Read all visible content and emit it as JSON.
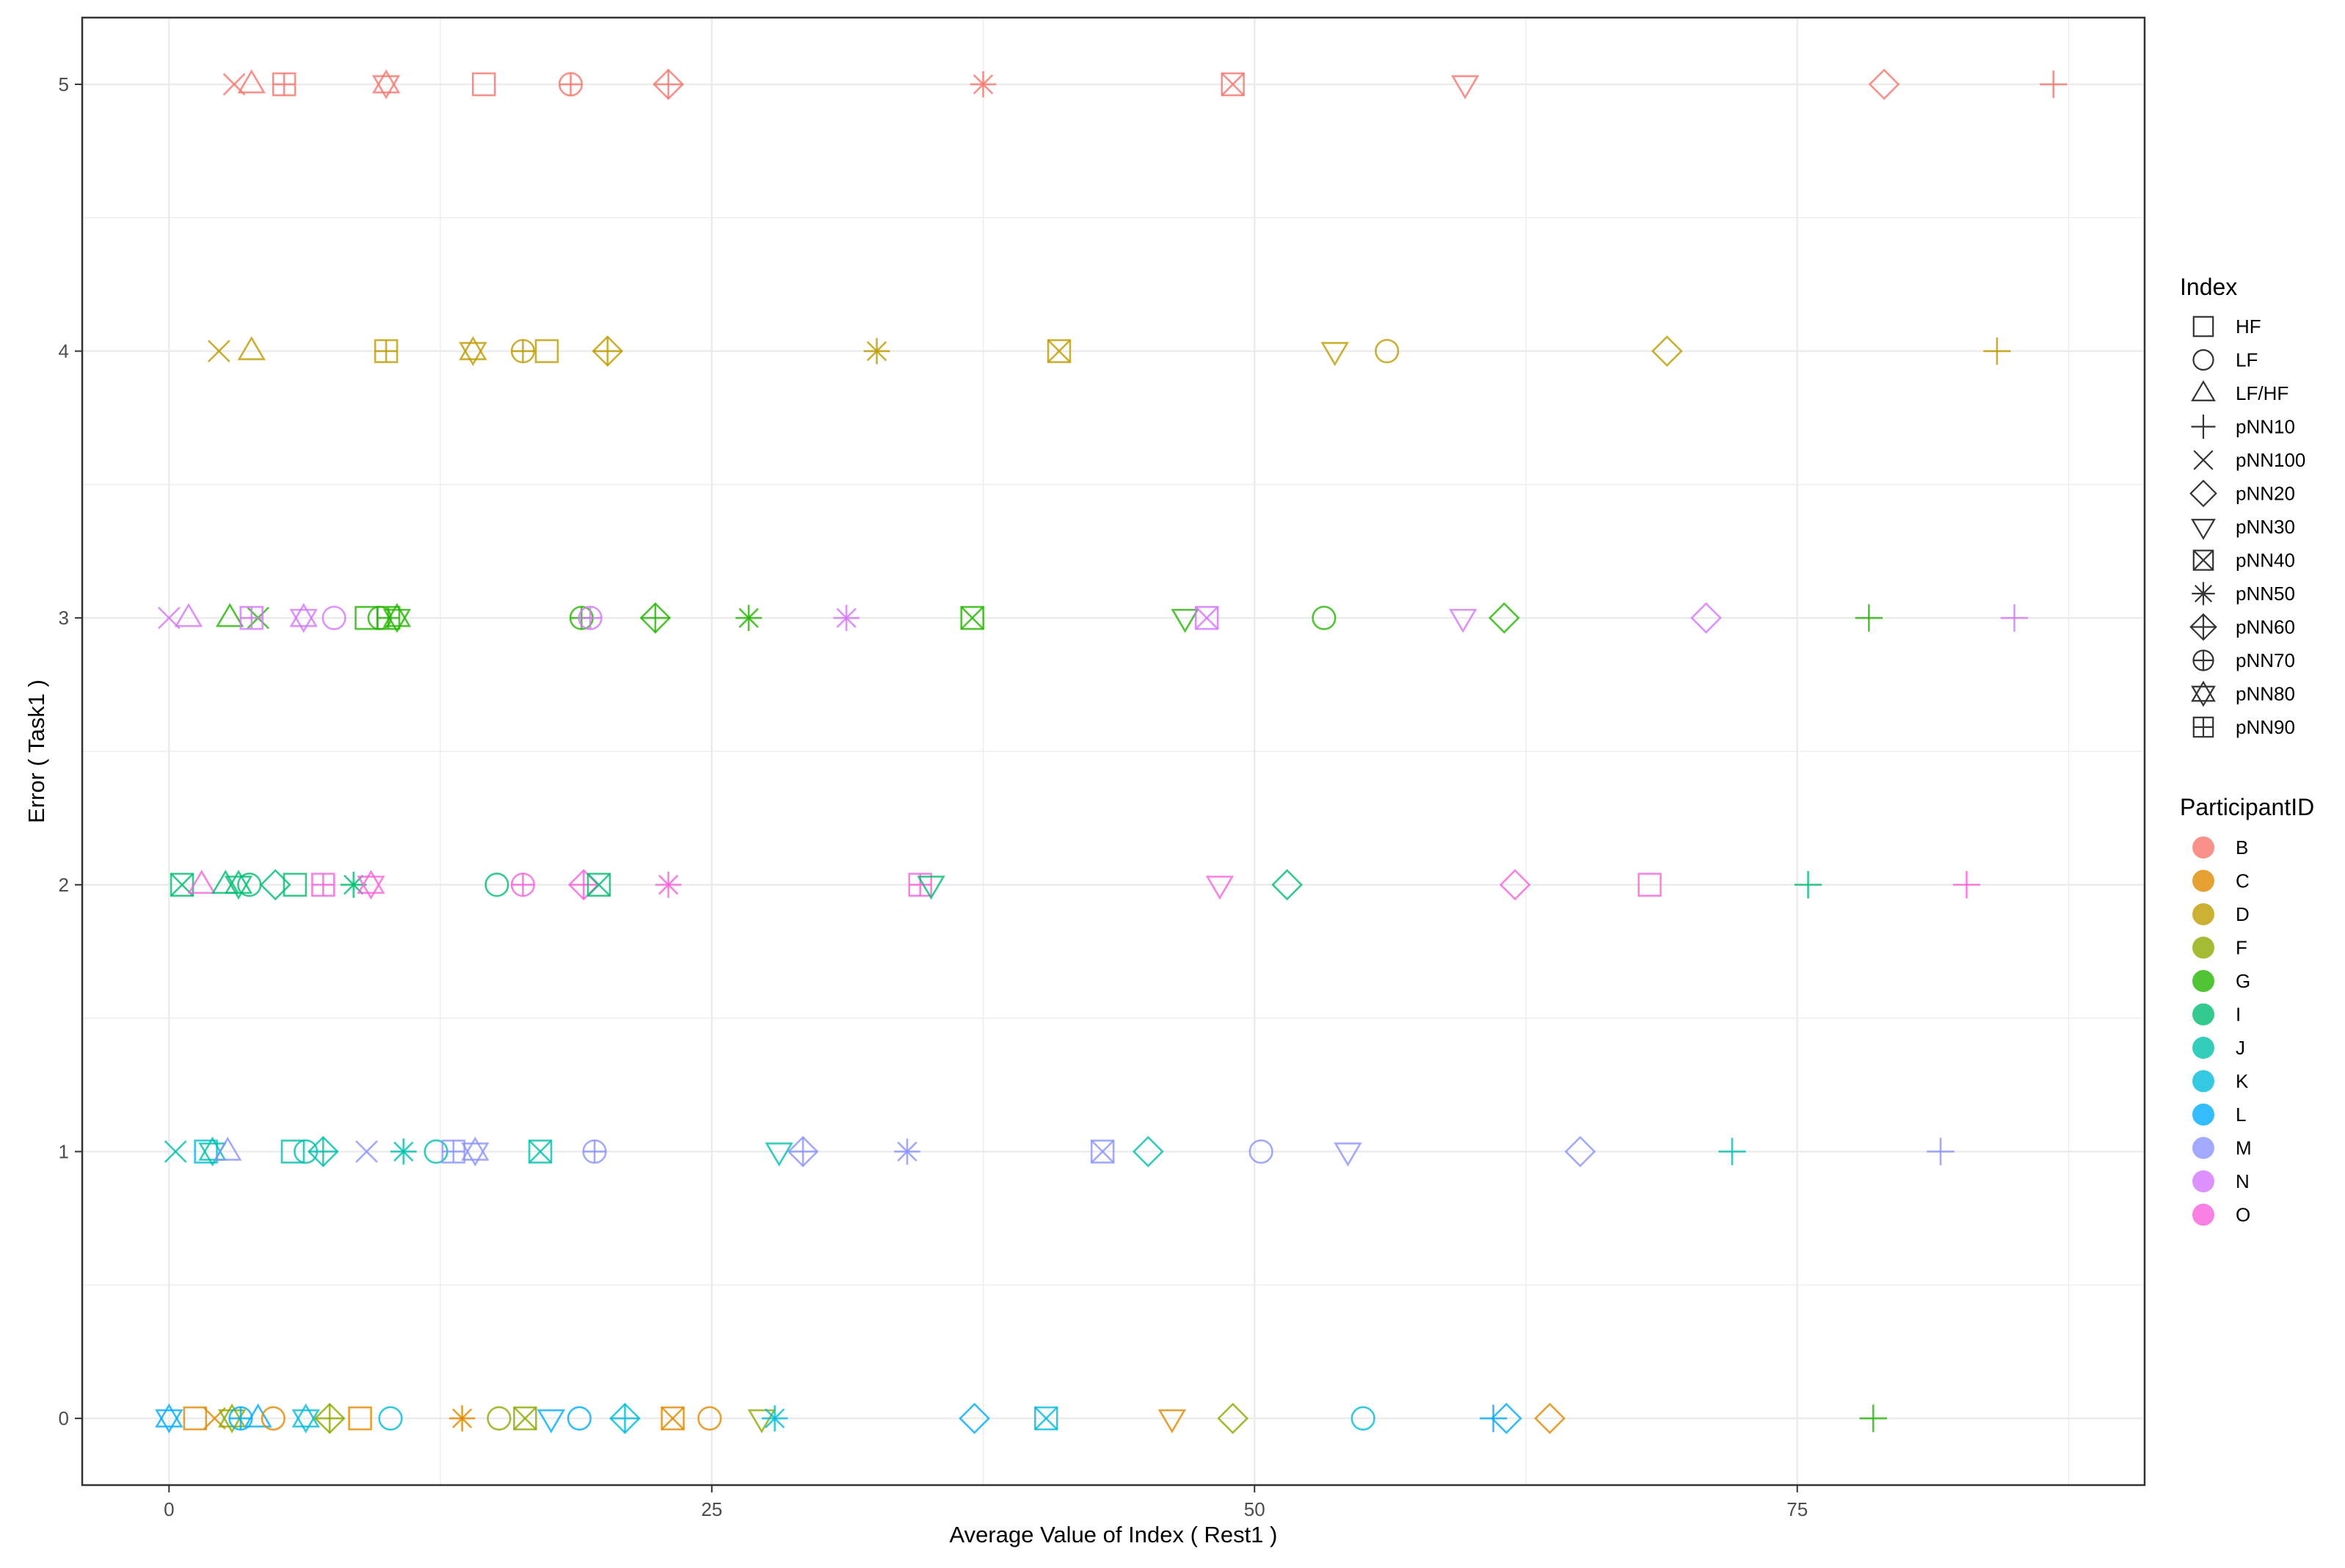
{
  "chart_data": {
    "type": "scatter",
    "xlabel": "Average Value of Index ( Rest1 )",
    "ylabel": "Error ( Task1 )",
    "xlim": [
      -4,
      91
    ],
    "ylim": [
      -0.25,
      5.25
    ],
    "x_ticks": [
      0,
      25,
      50,
      75
    ],
    "y_ticks": [
      0,
      1,
      2,
      3,
      4,
      5
    ],
    "x_tick_labels": [
      "0",
      "25",
      "50",
      "75"
    ],
    "y_tick_labels": [
      "0",
      "1",
      "2",
      "3",
      "4",
      "5"
    ],
    "grid": true,
    "legend_position": "right",
    "legends": [
      {
        "title": "Index",
        "entries": [
          {
            "label": "HF",
            "shape": "square"
          },
          {
            "label": "LF",
            "shape": "circle"
          },
          {
            "label": "LF/HF",
            "shape": "triangle-up"
          },
          {
            "label": "pNN10",
            "shape": "plus"
          },
          {
            "label": "pNN100",
            "shape": "cross"
          },
          {
            "label": "pNN20",
            "shape": "diamond"
          },
          {
            "label": "pNN30",
            "shape": "triangle-down"
          },
          {
            "label": "pNN40",
            "shape": "square-cross"
          },
          {
            "label": "pNN50",
            "shape": "asterisk"
          },
          {
            "label": "pNN60",
            "shape": "diamond-plus"
          },
          {
            "label": "pNN70",
            "shape": "circle-plus"
          },
          {
            "label": "pNN80",
            "shape": "star-of-david"
          },
          {
            "label": "pNN90",
            "shape": "square-plus"
          }
        ]
      },
      {
        "title": "ParticipantID",
        "entries": [
          {
            "label": "B",
            "color": "#F8766D"
          },
          {
            "label": "C",
            "color": "#E18A00"
          },
          {
            "label": "D",
            "color": "#BE9C00"
          },
          {
            "label": "F",
            "color": "#8CAB00"
          },
          {
            "label": "G",
            "color": "#24B700"
          },
          {
            "label": "I",
            "color": "#00BE70"
          },
          {
            "label": "J",
            "color": "#00C1AB"
          },
          {
            "label": "K",
            "color": "#00BBDA"
          },
          {
            "label": "L",
            "color": "#00ACFC"
          },
          {
            "label": "M",
            "color": "#8B93FF"
          },
          {
            "label": "N",
            "color": "#D575FE"
          },
          {
            "label": "O",
            "color": "#F962DD"
          }
        ]
      }
    ],
    "points": [
      {
        "p": "B",
        "i": "pNN100",
        "x": 3,
        "y": 5
      },
      {
        "p": "B",
        "i": "LF/HF",
        "x": 3.8,
        "y": 5
      },
      {
        "p": "B",
        "i": "pNN90",
        "x": 5.3,
        "y": 5
      },
      {
        "p": "B",
        "i": "pNN80",
        "x": 10,
        "y": 5
      },
      {
        "p": "B",
        "i": "HF",
        "x": 14.5,
        "y": 5
      },
      {
        "p": "B",
        "i": "pNN70",
        "x": 18.5,
        "y": 5
      },
      {
        "p": "B",
        "i": "pNN60",
        "x": 23,
        "y": 5
      },
      {
        "p": "B",
        "i": "pNN50",
        "x": 37.5,
        "y": 5
      },
      {
        "p": "B",
        "i": "pNN40",
        "x": 49,
        "y": 5
      },
      {
        "p": "B",
        "i": "pNN30",
        "x": 59.7,
        "y": 5
      },
      {
        "p": "B",
        "i": "pNN20",
        "x": 79,
        "y": 5
      },
      {
        "p": "B",
        "i": "pNN10",
        "x": 86.8,
        "y": 5
      },
      {
        "p": "D",
        "i": "pNN100",
        "x": 2.3,
        "y": 4
      },
      {
        "p": "D",
        "i": "LF/HF",
        "x": 3.8,
        "y": 4
      },
      {
        "p": "D",
        "i": "pNN90",
        "x": 10,
        "y": 4
      },
      {
        "p": "D",
        "i": "pNN80",
        "x": 14,
        "y": 4
      },
      {
        "p": "D",
        "i": "pNN70",
        "x": 16.3,
        "y": 4
      },
      {
        "p": "D",
        "i": "HF",
        "x": 17.4,
        "y": 4
      },
      {
        "p": "D",
        "i": "pNN60",
        "x": 20.2,
        "y": 4
      },
      {
        "p": "D",
        "i": "pNN50",
        "x": 32.6,
        "y": 4
      },
      {
        "p": "D",
        "i": "pNN40",
        "x": 41,
        "y": 4
      },
      {
        "p": "D",
        "i": "pNN30",
        "x": 53.7,
        "y": 4
      },
      {
        "p": "D",
        "i": "LF",
        "x": 56.1,
        "y": 4
      },
      {
        "p": "D",
        "i": "pNN20",
        "x": 69,
        "y": 4
      },
      {
        "p": "D",
        "i": "pNN10",
        "x": 84.2,
        "y": 4
      },
      {
        "p": "N",
        "i": "pNN100",
        "x": 0,
        "y": 3
      },
      {
        "p": "N",
        "i": "LF/HF",
        "x": 0.9,
        "y": 3
      },
      {
        "p": "G",
        "i": "LF/HF",
        "x": 2.8,
        "y": 3
      },
      {
        "p": "G",
        "i": "pNN100",
        "x": 4.1,
        "y": 3
      },
      {
        "p": "N",
        "i": "pNN90",
        "x": 3.8,
        "y": 3
      },
      {
        "p": "N",
        "i": "pNN80",
        "x": 6.2,
        "y": 3
      },
      {
        "p": "N",
        "i": "LF",
        "x": 7.6,
        "y": 3
      },
      {
        "p": "G",
        "i": "HF",
        "x": 9.1,
        "y": 3
      },
      {
        "p": "G",
        "i": "pNN90",
        "x": 10.1,
        "y": 3
      },
      {
        "p": "G",
        "i": "LF",
        "x": 9.7,
        "y": 3
      },
      {
        "p": "G",
        "i": "pNN80",
        "x": 10.5,
        "y": 3
      },
      {
        "p": "G",
        "i": "pNN70",
        "x": 19,
        "y": 3
      },
      {
        "p": "N",
        "i": "pNN70",
        "x": 19.4,
        "y": 3
      },
      {
        "p": "G",
        "i": "pNN60",
        "x": 22.4,
        "y": 3
      },
      {
        "p": "G",
        "i": "pNN50",
        "x": 26.7,
        "y": 3
      },
      {
        "p": "N",
        "i": "pNN50",
        "x": 31.2,
        "y": 3
      },
      {
        "p": "G",
        "i": "pNN40",
        "x": 37,
        "y": 3
      },
      {
        "p": "G",
        "i": "pNN30",
        "x": 46.8,
        "y": 3
      },
      {
        "p": "N",
        "i": "pNN40",
        "x": 47.8,
        "y": 3
      },
      {
        "p": "G",
        "i": "LF",
        "x": 53.2,
        "y": 3
      },
      {
        "p": "N",
        "i": "pNN30",
        "x": 59.6,
        "y": 3
      },
      {
        "p": "G",
        "i": "pNN20",
        "x": 61.5,
        "y": 3
      },
      {
        "p": "N",
        "i": "pNN20",
        "x": 70.8,
        "y": 3
      },
      {
        "p": "G",
        "i": "pNN10",
        "x": 78.3,
        "y": 3
      },
      {
        "p": "N",
        "i": "pNN10",
        "x": 85,
        "y": 3
      },
      {
        "p": "I",
        "i": "pNN40",
        "x": 0.6,
        "y": 2
      },
      {
        "p": "O",
        "i": "LF/HF",
        "x": 1.5,
        "y": 2
      },
      {
        "p": "I",
        "i": "LF/HF",
        "x": 2.6,
        "y": 2
      },
      {
        "p": "I",
        "i": "pNN80",
        "x": 3.2,
        "y": 2
      },
      {
        "p": "I",
        "i": "LF",
        "x": 3.7,
        "y": 2
      },
      {
        "p": "I",
        "i": "pNN20",
        "x": 4.9,
        "y": 2
      },
      {
        "p": "I",
        "i": "HF",
        "x": 5.8,
        "y": 2
      },
      {
        "p": "O",
        "i": "pNN90",
        "x": 7.1,
        "y": 2
      },
      {
        "p": "I",
        "i": "pNN50",
        "x": 8.5,
        "y": 2
      },
      {
        "p": "O",
        "i": "pNN80",
        "x": 9.3,
        "y": 2
      },
      {
        "p": "I",
        "i": "LF",
        "x": 15.1,
        "y": 2
      },
      {
        "p": "O",
        "i": "pNN70",
        "x": 16.3,
        "y": 2
      },
      {
        "p": "O",
        "i": "pNN60",
        "x": 19.1,
        "y": 2
      },
      {
        "p": "I",
        "i": "pNN40",
        "x": 19.8,
        "y": 2
      },
      {
        "p": "O",
        "i": "pNN50",
        "x": 23,
        "y": 2
      },
      {
        "p": "O",
        "i": "pNN90",
        "x": 34.6,
        "y": 2
      },
      {
        "p": "I",
        "i": "pNN30",
        "x": 35.1,
        "y": 2
      },
      {
        "p": "O",
        "i": "pNN30",
        "x": 48.4,
        "y": 2
      },
      {
        "p": "I",
        "i": "pNN20",
        "x": 51.5,
        "y": 2
      },
      {
        "p": "O",
        "i": "pNN20",
        "x": 62,
        "y": 2
      },
      {
        "p": "O",
        "i": "HF",
        "x": 68.2,
        "y": 2
      },
      {
        "p": "I",
        "i": "pNN10",
        "x": 75.5,
        "y": 2
      },
      {
        "p": "O",
        "i": "pNN10",
        "x": 82.8,
        "y": 2
      },
      {
        "p": "J",
        "i": "pNN100",
        "x": 0.3,
        "y": 1
      },
      {
        "p": "K",
        "i": "HF",
        "x": 1.7,
        "y": 1
      },
      {
        "p": "J",
        "i": "pNN80",
        "x": 2,
        "y": 1
      },
      {
        "p": "M",
        "i": "LF/HF",
        "x": 2.7,
        "y": 1
      },
      {
        "p": "J",
        "i": "HF",
        "x": 5.7,
        "y": 1
      },
      {
        "p": "J",
        "i": "LF",
        "x": 6.3,
        "y": 1
      },
      {
        "p": "J",
        "i": "pNN60",
        "x": 7.1,
        "y": 1
      },
      {
        "p": "M",
        "i": "pNN100",
        "x": 9.1,
        "y": 1
      },
      {
        "p": "J",
        "i": "pNN50",
        "x": 10.8,
        "y": 1
      },
      {
        "p": "J",
        "i": "LF",
        "x": 12.3,
        "y": 1
      },
      {
        "p": "M",
        "i": "pNN90",
        "x": 13.1,
        "y": 1
      },
      {
        "p": "M",
        "i": "pNN80",
        "x": 14.1,
        "y": 1
      },
      {
        "p": "J",
        "i": "pNN40",
        "x": 17.1,
        "y": 1
      },
      {
        "p": "M",
        "i": "pNN70",
        "x": 19.6,
        "y": 1
      },
      {
        "p": "J",
        "i": "pNN30",
        "x": 28.1,
        "y": 1
      },
      {
        "p": "M",
        "i": "pNN60",
        "x": 29.2,
        "y": 1
      },
      {
        "p": "M",
        "i": "pNN50",
        "x": 34,
        "y": 1
      },
      {
        "p": "M",
        "i": "pNN40",
        "x": 43,
        "y": 1
      },
      {
        "p": "J",
        "i": "pNN20",
        "x": 45.1,
        "y": 1
      },
      {
        "p": "M",
        "i": "LF",
        "x": 50.3,
        "y": 1
      },
      {
        "p": "M",
        "i": "pNN30",
        "x": 54.3,
        "y": 1
      },
      {
        "p": "M",
        "i": "pNN20",
        "x": 65,
        "y": 1
      },
      {
        "p": "J",
        "i": "pNN10",
        "x": 72,
        "y": 1
      },
      {
        "p": "M",
        "i": "pNN10",
        "x": 81.6,
        "y": 1
      },
      {
        "p": "L",
        "i": "pNN80",
        "x": 0,
        "y": 0
      },
      {
        "p": "C",
        "i": "HF",
        "x": 1.2,
        "y": 0
      },
      {
        "p": "C",
        "i": "pNN100",
        "x": 2.1,
        "y": 0
      },
      {
        "p": "F",
        "i": "pNN80",
        "x": 2.9,
        "y": 0
      },
      {
        "p": "L",
        "i": "pNN70",
        "x": 3.3,
        "y": 0
      },
      {
        "p": "L",
        "i": "LF/HF",
        "x": 4.1,
        "y": 0
      },
      {
        "p": "C",
        "i": "LF",
        "x": 4.8,
        "y": 0
      },
      {
        "p": "K",
        "i": "pNN80",
        "x": 6.3,
        "y": 0
      },
      {
        "p": "F",
        "i": "pNN60",
        "x": 7.4,
        "y": 0
      },
      {
        "p": "C",
        "i": "HF",
        "x": 8.8,
        "y": 0
      },
      {
        "p": "K",
        "i": "LF",
        "x": 10.2,
        "y": 0
      },
      {
        "p": "C",
        "i": "pNN50",
        "x": 13.5,
        "y": 0
      },
      {
        "p": "F",
        "i": "LF",
        "x": 15.2,
        "y": 0
      },
      {
        "p": "F",
        "i": "pNN40",
        "x": 16.4,
        "y": 0
      },
      {
        "p": "L",
        "i": "pNN30",
        "x": 17.6,
        "y": 0
      },
      {
        "p": "L",
        "i": "LF",
        "x": 18.9,
        "y": 0
      },
      {
        "p": "K",
        "i": "pNN60",
        "x": 21,
        "y": 0
      },
      {
        "p": "C",
        "i": "pNN40",
        "x": 23.2,
        "y": 0
      },
      {
        "p": "C",
        "i": "LF",
        "x": 24.9,
        "y": 0
      },
      {
        "p": "F",
        "i": "pNN30",
        "x": 27.3,
        "y": 0
      },
      {
        "p": "K",
        "i": "pNN50",
        "x": 27.9,
        "y": 0
      },
      {
        "p": "L",
        "i": "pNN20",
        "x": 37.1,
        "y": 0
      },
      {
        "p": "K",
        "i": "pNN40",
        "x": 40.4,
        "y": 0
      },
      {
        "p": "C",
        "i": "pNN30",
        "x": 46.2,
        "y": 0
      },
      {
        "p": "F",
        "i": "pNN20",
        "x": 49,
        "y": 0
      },
      {
        "p": "K",
        "i": "LF",
        "x": 55,
        "y": 0
      },
      {
        "p": "L",
        "i": "pNN10",
        "x": 61,
        "y": 0
      },
      {
        "p": "L",
        "i": "pNN20",
        "x": 61.6,
        "y": 0
      },
      {
        "p": "C",
        "i": "pNN20",
        "x": 63.6,
        "y": 0
      },
      {
        "p": "G",
        "i": "pNN10",
        "x": 78.5,
        "y": 0
      }
    ]
  }
}
